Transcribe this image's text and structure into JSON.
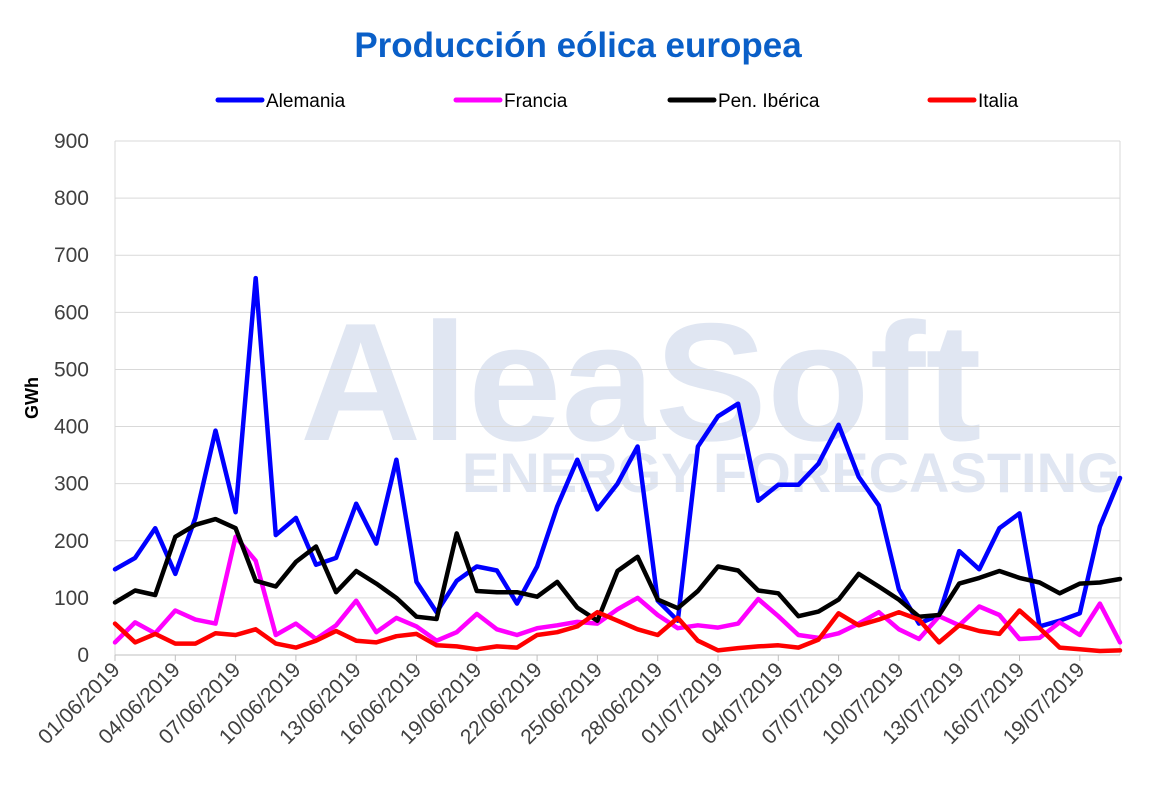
{
  "chart_data": {
    "type": "line",
    "title": "Producción eólica europea",
    "ylabel": "GWh",
    "xlabel": "",
    "ylim": [
      0,
      900
    ],
    "yticks": [
      "0",
      "100",
      "200",
      "300",
      "400",
      "500",
      "600",
      "700",
      "800",
      "900"
    ],
    "grid": true,
    "legend_position": "top",
    "watermark": {
      "main": "AleaSoft",
      "sub": "ENERGY FORECASTING"
    },
    "x": [
      "01/06/2019",
      "02/06/2019",
      "03/06/2019",
      "04/06/2019",
      "05/06/2019",
      "06/06/2019",
      "07/06/2019",
      "08/06/2019",
      "09/06/2019",
      "10/06/2019",
      "11/06/2019",
      "12/06/2019",
      "13/06/2019",
      "14/06/2019",
      "15/06/2019",
      "16/06/2019",
      "17/06/2019",
      "18/06/2019",
      "19/06/2019",
      "20/06/2019",
      "21/06/2019",
      "22/06/2019",
      "23/06/2019",
      "24/06/2019",
      "25/06/2019",
      "26/06/2019",
      "27/06/2019",
      "28/06/2019",
      "29/06/2019",
      "30/06/2019",
      "01/07/2019",
      "02/07/2019",
      "03/07/2019",
      "04/07/2019",
      "05/07/2019",
      "06/07/2019",
      "07/07/2019",
      "08/07/2019",
      "09/07/2019",
      "10/07/2019",
      "11/07/2019",
      "12/07/2019",
      "13/07/2019",
      "14/07/2019",
      "15/07/2019",
      "16/07/2019",
      "17/07/2019",
      "18/07/2019",
      "19/07/2019",
      "20/07/2019",
      "21/07/2019"
    ],
    "xticks": [
      "01/06/2019",
      "04/06/2019",
      "07/06/2019",
      "10/06/2019",
      "13/06/2019",
      "16/06/2019",
      "19/06/2019",
      "22/06/2019",
      "25/06/2019",
      "28/06/2019",
      "01/07/2019",
      "04/07/2019",
      "07/07/2019",
      "10/07/2019",
      "13/07/2019",
      "16/07/2019",
      "19/07/2019"
    ],
    "series": [
      {
        "name": "Alemania",
        "color": "#0000ff",
        "values": [
          150,
          170,
          222,
          142,
          240,
          393,
          250,
          660,
          210,
          240,
          158,
          170,
          265,
          195,
          342,
          128,
          75,
          130,
          155,
          148,
          90,
          155,
          260,
          342,
          255,
          300,
          365,
          95,
          60,
          365,
          418,
          440,
          270,
          298,
          298,
          335,
          403,
          312,
          262,
          115,
          55,
          70,
          182,
          150,
          222,
          248,
          50,
          60,
          73,
          225,
          310
        ]
      },
      {
        "name": "Francia",
        "color": "#ff00ff",
        "values": [
          22,
          57,
          38,
          78,
          62,
          55,
          207,
          165,
          35,
          55,
          28,
          52,
          95,
          40,
          65,
          50,
          25,
          40,
          72,
          45,
          35,
          47,
          52,
          58,
          55,
          80,
          100,
          70,
          47,
          52,
          48,
          55,
          98,
          68,
          35,
          30,
          38,
          55,
          75,
          45,
          28,
          68,
          52,
          85,
          70,
          28,
          30,
          57,
          35,
          90,
          22
        ]
      },
      {
        "name": "Pen. Ibérica",
        "color": "#000000",
        "values": [
          92,
          113,
          105,
          207,
          228,
          238,
          222,
          130,
          120,
          163,
          190,
          110,
          147,
          125,
          100,
          67,
          63,
          213,
          112,
          110,
          110,
          102,
          128,
          83,
          60,
          147,
          172,
          97,
          82,
          112,
          155,
          148,
          113,
          108,
          68,
          76,
          97,
          142,
          120,
          97,
          67,
          70,
          125,
          135,
          147,
          135,
          127,
          108,
          125,
          127,
          133
        ]
      },
      {
        "name": "Italia",
        "color": "#ff0000",
        "values": [
          55,
          22,
          37,
          20,
          20,
          38,
          35,
          45,
          20,
          13,
          25,
          42,
          25,
          22,
          33,
          37,
          17,
          15,
          10,
          15,
          13,
          35,
          40,
          50,
          75,
          60,
          45,
          35,
          65,
          25,
          8,
          12,
          15,
          17,
          13,
          27,
          73,
          52,
          62,
          75,
          62,
          22,
          52,
          42,
          37,
          78,
          47,
          13,
          10,
          7,
          8
        ]
      }
    ]
  }
}
